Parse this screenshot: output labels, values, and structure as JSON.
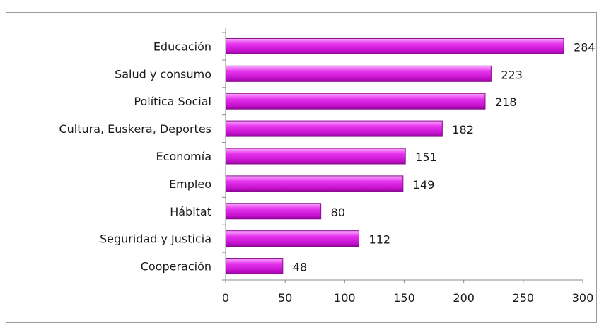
{
  "chart_data": {
    "type": "bar",
    "orientation": "horizontal",
    "categories": [
      "Educación",
      "Salud y consumo",
      "Política Social",
      "Cultura, Euskera, Deportes",
      "Economía",
      "Empleo",
      "Hábitat",
      "Seguridad y Justicia",
      "Cooperación"
    ],
    "values": [
      284,
      223,
      218,
      182,
      151,
      149,
      80,
      112,
      48
    ],
    "xlim": [
      0,
      300
    ],
    "x_ticks": [
      0,
      50,
      100,
      150,
      200,
      250,
      300
    ],
    "grid": false,
    "legend": "none",
    "bar_color": "#e020e8",
    "bar_edge_color": "#8a0a90",
    "title": "",
    "xlabel": "",
    "ylabel": ""
  }
}
